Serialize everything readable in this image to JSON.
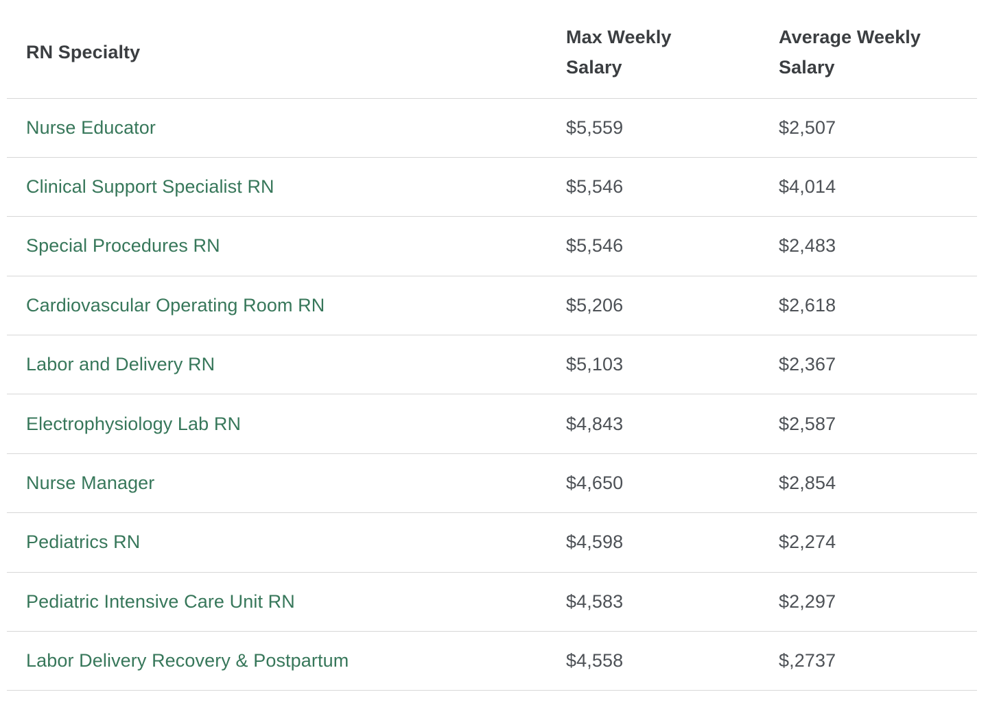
{
  "chart_data": {
    "type": "table",
    "title": "",
    "columns": [
      "RN Specialty",
      "Max Weekly Salary",
      "Average Weekly Salary"
    ],
    "rows": [
      {
        "specialty": "Nurse Educator",
        "max_weekly": "$5,559",
        "avg_weekly": "$2,507"
      },
      {
        "specialty": "Clinical Support Specialist RN",
        "max_weekly": "$5,546",
        "avg_weekly": "$4,014"
      },
      {
        "specialty": "Special Procedures RN",
        "max_weekly": "$5,546",
        "avg_weekly": "$2,483"
      },
      {
        "specialty": "Cardiovascular Operating Room RN",
        "max_weekly": "$5,206",
        "avg_weekly": "$2,618"
      },
      {
        "specialty": "Labor and Delivery RN",
        "max_weekly": "$5,103",
        "avg_weekly": "$2,367"
      },
      {
        "specialty": "Electrophysiology Lab RN",
        "max_weekly": "$4,843",
        "avg_weekly": "$2,587"
      },
      {
        "specialty": "Nurse Manager",
        "max_weekly": "$4,650",
        "avg_weekly": "$2,854"
      },
      {
        "specialty": "Pediatrics RN",
        "max_weekly": "$4,598",
        "avg_weekly": "$2,274"
      },
      {
        "specialty": "Pediatric Intensive Care Unit RN",
        "max_weekly": "$4,583",
        "avg_weekly": "$2,297"
      },
      {
        "specialty": "Labor Delivery Recovery & Postpartum",
        "max_weekly": "$4,558",
        "avg_weekly": "$,2737"
      }
    ]
  },
  "colors": {
    "specialty_link_green": "#37775A",
    "header_text": "#3B3E41",
    "value_text": "#4D5156",
    "row_divider": "#D7D7D7",
    "background": "#FFFFFF"
  }
}
